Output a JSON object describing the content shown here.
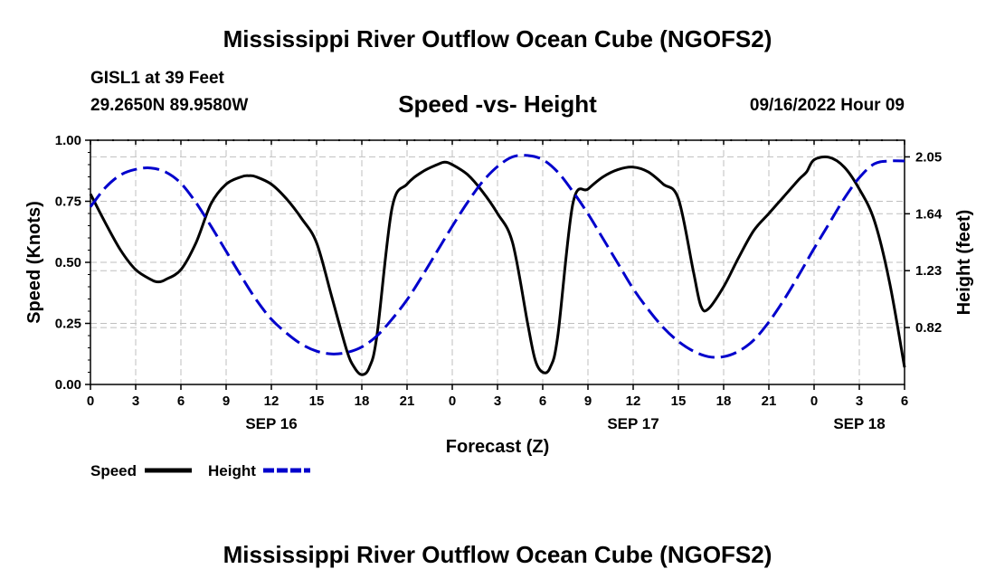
{
  "title": "Mississippi River Outflow Ocean Cube (NGOFS2)",
  "footer_title": "Mississippi River Outflow Ocean Cube (NGOFS2)",
  "station": "GISL1 at 39 Feet",
  "coordinates": "29.2650N  89.9580W",
  "issued": "09/16/2022 Hour 09",
  "colors": {
    "speed": "#000000",
    "height": "#0000cc",
    "grid": "#bfbfbf"
  },
  "chart_data": {
    "type": "line",
    "title": "Speed -vs- Height",
    "xlabel": "Forecast (Z)",
    "ylabel": "Speed (Knots)",
    "y2label": "Height (feet)",
    "xlim": [
      0,
      54
    ],
    "ylim": [
      0,
      1
    ],
    "y2lim": [
      0.41,
      2.17
    ],
    "x_ticks": [
      0,
      3,
      6,
      9,
      12,
      15,
      18,
      21,
      24,
      27,
      30,
      33,
      36,
      39,
      42,
      45,
      48,
      51,
      54
    ],
    "x_tick_labels": [
      "0",
      "3",
      "6",
      "9",
      "12",
      "15",
      "18",
      "21",
      "0",
      "3",
      "6",
      "9",
      "12",
      "15",
      "18",
      "21",
      "0",
      "3",
      "6"
    ],
    "date_labels": [
      {
        "x": 12,
        "label": "SEP 16"
      },
      {
        "x": 36,
        "label": "SEP 17"
      },
      {
        "x": 51,
        "label": "SEP 18"
      }
    ],
    "y_ticks": [
      0,
      0.25,
      0.5,
      0.75,
      1.0
    ],
    "y_tick_labels": [
      "0.00",
      "0.25",
      "0.50",
      "0.75",
      "1.00"
    ],
    "y2_ticks": [
      0.82,
      1.23,
      1.64,
      2.05
    ],
    "y2_tick_labels": [
      "0.82",
      "1.23",
      "1.64",
      "2.05"
    ],
    "grid": true,
    "legend": [
      "Speed",
      "Height"
    ],
    "series": [
      {
        "name": "Speed",
        "axis": "left",
        "style": "solid",
        "x": [
          0,
          1,
          2,
          3,
          4,
          4.5,
          5,
          6,
          7,
          8,
          9,
          10,
          10.5,
          11,
          12,
          13,
          14,
          15,
          16,
          17,
          17.5,
          18,
          18.5,
          19,
          20,
          21,
          22,
          23,
          23.5,
          24,
          25,
          26,
          27,
          28,
          29,
          29.5,
          30,
          30.5,
          31,
          32,
          33,
          34,
          35,
          36,
          37,
          38,
          39,
          40,
          40.5,
          41,
          42,
          43,
          44,
          45,
          46,
          47,
          47.5,
          48,
          49,
          50,
          51,
          52,
          53,
          54
        ],
        "y": [
          0.78,
          0.66,
          0.55,
          0.47,
          0.43,
          0.42,
          0.43,
          0.47,
          0.58,
          0.74,
          0.82,
          0.85,
          0.855,
          0.85,
          0.82,
          0.76,
          0.68,
          0.58,
          0.36,
          0.14,
          0.07,
          0.04,
          0.07,
          0.2,
          0.72,
          0.82,
          0.87,
          0.9,
          0.91,
          0.9,
          0.86,
          0.79,
          0.7,
          0.58,
          0.25,
          0.1,
          0.05,
          0.07,
          0.2,
          0.74,
          0.8,
          0.85,
          0.88,
          0.89,
          0.87,
          0.82,
          0.76,
          0.46,
          0.32,
          0.31,
          0.4,
          0.52,
          0.63,
          0.7,
          0.77,
          0.84,
          0.87,
          0.92,
          0.93,
          0.89,
          0.8,
          0.67,
          0.42,
          0.07
        ]
      },
      {
        "name": "Height",
        "axis": "right",
        "style": "dashed",
        "x": [
          0,
          1,
          2,
          3,
          4,
          5,
          6,
          7,
          8,
          9,
          10,
          11,
          12,
          13,
          14,
          15,
          16,
          17,
          18,
          19,
          20,
          21,
          22,
          23,
          24,
          25,
          26,
          27,
          28,
          29,
          30,
          31,
          32,
          33,
          34,
          35,
          36,
          37,
          38,
          39,
          40,
          41,
          42,
          43,
          44,
          45,
          46,
          47,
          48,
          49,
          50,
          51,
          52,
          53,
          54
        ],
        "y": [
          1.69,
          1.83,
          1.92,
          1.96,
          1.97,
          1.94,
          1.86,
          1.72,
          1.55,
          1.37,
          1.19,
          1.02,
          0.88,
          0.78,
          0.7,
          0.65,
          0.63,
          0.64,
          0.68,
          0.76,
          0.88,
          1.02,
          1.19,
          1.37,
          1.55,
          1.72,
          1.87,
          1.98,
          2.05,
          2.06,
          2.03,
          1.94,
          1.8,
          1.64,
          1.46,
          1.28,
          1.1,
          0.95,
          0.82,
          0.72,
          0.65,
          0.61,
          0.61,
          0.65,
          0.73,
          0.86,
          1.02,
          1.2,
          1.39,
          1.57,
          1.75,
          1.9,
          2.0,
          2.02,
          2.02
        ]
      }
    ]
  }
}
